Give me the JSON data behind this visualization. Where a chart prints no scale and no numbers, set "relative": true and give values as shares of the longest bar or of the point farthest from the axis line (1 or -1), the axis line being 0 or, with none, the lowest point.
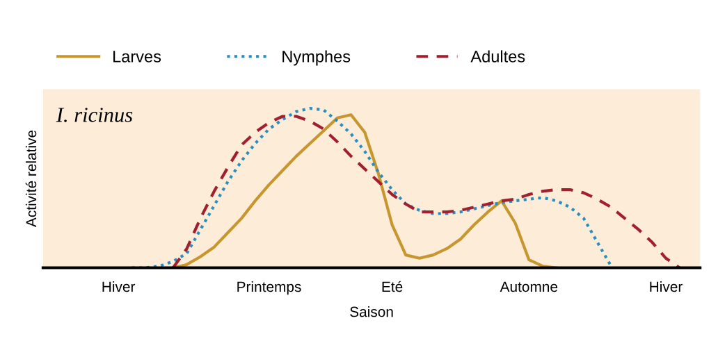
{
  "chart_data": {
    "type": "line",
    "relative": true,
    "xlabel": "Saison",
    "ylabel": "Activité relative",
    "annotations": [
      "I. ricinus"
    ],
    "categories": [
      null,
      null,
      null,
      null,
      null,
      "Hiver",
      null,
      null,
      null,
      null,
      null,
      null,
      null,
      null,
      null,
      null,
      "Printemps",
      null,
      null,
      null,
      null,
      null,
      null,
      null,
      null,
      "Eté",
      null,
      null,
      null,
      null,
      null,
      null,
      null,
      null,
      null,
      "Automne",
      null,
      null,
      null,
      null,
      null,
      null,
      null,
      null,
      null,
      "Hiver",
      null,
      null
    ],
    "tick_labels": "x",
    "grid": false,
    "legend": "top",
    "marker": "none",
    "series": [
      {
        "name": "Larves",
        "color": "#c8962e",
        "line_style": "solid",
        "values": [
          null,
          null,
          null,
          null,
          null,
          null,
          null,
          null,
          null,
          0,
          0.02,
          0.07,
          0.13,
          0.22,
          0.31,
          0.42,
          0.52,
          0.61,
          0.7,
          0.78,
          0.86,
          0.94,
          0.96,
          0.85,
          0.59,
          0.27,
          0.08,
          0.06,
          0.08,
          0.12,
          0.18,
          0.27,
          0.35,
          0.42,
          0.28,
          0.05,
          0.01,
          0,
          null,
          null,
          null,
          null,
          null,
          null,
          null,
          null,
          null,
          null
        ]
      },
      {
        "name": "Nymphes",
        "color": "#2a8fc0",
        "line_style": "dotted",
        "values": [
          null,
          null,
          null,
          null,
          null,
          null,
          0,
          0,
          0.01,
          0.04,
          0.09,
          0.24,
          0.39,
          0.54,
          0.67,
          0.78,
          0.87,
          0.93,
          0.98,
          1,
          0.99,
          0.92,
          0.84,
          0.73,
          0.6,
          0.49,
          0.4,
          0.36,
          0.34,
          0.34,
          0.35,
          0.37,
          0.39,
          0.41,
          0.42,
          0.43,
          0.44,
          0.42,
          0.38,
          0.31,
          0.16,
          0.01,
          null,
          null,
          null,
          null,
          null,
          null
        ]
      },
      {
        "name": "Adultes",
        "color": "#a02030",
        "line_style": "dashed",
        "values": [
          null,
          null,
          null,
          null,
          null,
          null,
          null,
          null,
          null,
          0,
          0.12,
          0.31,
          0.48,
          0.63,
          0.77,
          0.85,
          0.91,
          0.95,
          0.95,
          0.92,
          0.87,
          0.79,
          0.7,
          0.62,
          0.54,
          0.46,
          0.4,
          0.35,
          0.35,
          0.35,
          0.36,
          0.38,
          0.4,
          0.42,
          0.43,
          0.46,
          0.48,
          0.49,
          0.49,
          0.47,
          0.43,
          0.38,
          0.31,
          0.24,
          0.16,
          0.06,
          0,
          null
        ]
      }
    ]
  }
}
